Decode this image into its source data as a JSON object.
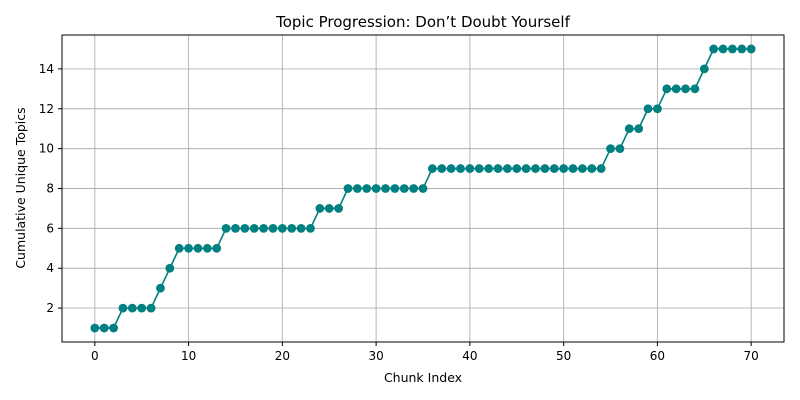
{
  "chart_data": {
    "type": "line",
    "title": "Topic Progression: Don’t Doubt Yourself",
    "xlabel": "Chunk Index",
    "ylabel": "Cumulative Unique Topics",
    "xlim": [
      -3.5,
      73.5
    ],
    "ylim": [
      0.3,
      15.7
    ],
    "xticks": [
      0,
      10,
      20,
      30,
      40,
      50,
      60,
      70
    ],
    "yticks": [
      2,
      4,
      6,
      8,
      10,
      12,
      14
    ],
    "grid": true,
    "marker": "circle",
    "color": "#008080",
    "series": [
      {
        "x": [
          0,
          1,
          2,
          3,
          4,
          5,
          6,
          7,
          8,
          9,
          10,
          11,
          12,
          13,
          14,
          15,
          16,
          17,
          18,
          19,
          20,
          21,
          22,
          23,
          24,
          25,
          26,
          27,
          28,
          29,
          30,
          31,
          32,
          33,
          34,
          35,
          36,
          37,
          38,
          39,
          40,
          41,
          42,
          43,
          44,
          45,
          46,
          47,
          48,
          49,
          50,
          51,
          52,
          53,
          54,
          55,
          56,
          57,
          58,
          59,
          60,
          61,
          62,
          63,
          64,
          65,
          66,
          67,
          68,
          69,
          70
        ],
        "values": [
          1,
          1,
          1,
          2,
          2,
          2,
          2,
          3,
          4,
          5,
          5,
          5,
          5,
          5,
          6,
          6,
          6,
          6,
          6,
          6,
          6,
          6,
          6,
          6,
          7,
          7,
          7,
          8,
          8,
          8,
          8,
          8,
          8,
          8,
          8,
          8,
          9,
          9,
          9,
          9,
          9,
          9,
          9,
          9,
          9,
          9,
          9,
          9,
          9,
          9,
          9,
          9,
          9,
          9,
          9,
          10,
          10,
          11,
          11,
          12,
          12,
          13,
          13,
          13,
          13,
          14,
          15,
          15,
          15,
          15,
          15
        ]
      }
    ]
  }
}
